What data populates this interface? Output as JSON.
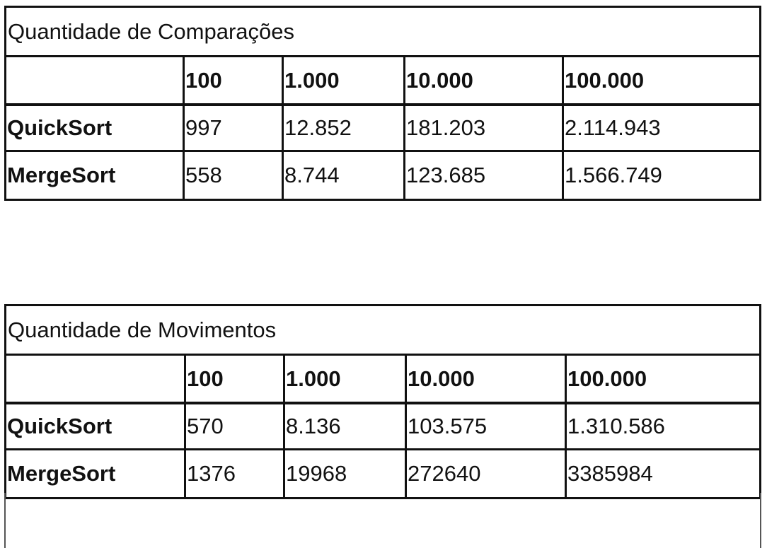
{
  "tables": [
    {
      "title": "Quantidade de Comparações",
      "columns": [
        "",
        "100",
        "1.000",
        "10.000",
        "100.000"
      ],
      "rows": [
        {
          "label": "QuickSort",
          "values": [
            "997",
            "12.852",
            "181.203",
            "2.114.943"
          ]
        },
        {
          "label": "MergeSort",
          "values": [
            "558",
            "8.744",
            "123.685",
            "1.566.749"
          ]
        }
      ]
    },
    {
      "title": "Quantidade de Movimentos",
      "columns": [
        "",
        "100",
        "1.000",
        "10.000",
        "100.000"
      ],
      "rows": [
        {
          "label": "QuickSort",
          "values": [
            "570",
            "8.136",
            "103.575",
            "1.310.586"
          ]
        },
        {
          "label": "MergeSort",
          "values": [
            "1376",
            "19968",
            "272640",
            "3385984"
          ]
        }
      ]
    }
  ]
}
